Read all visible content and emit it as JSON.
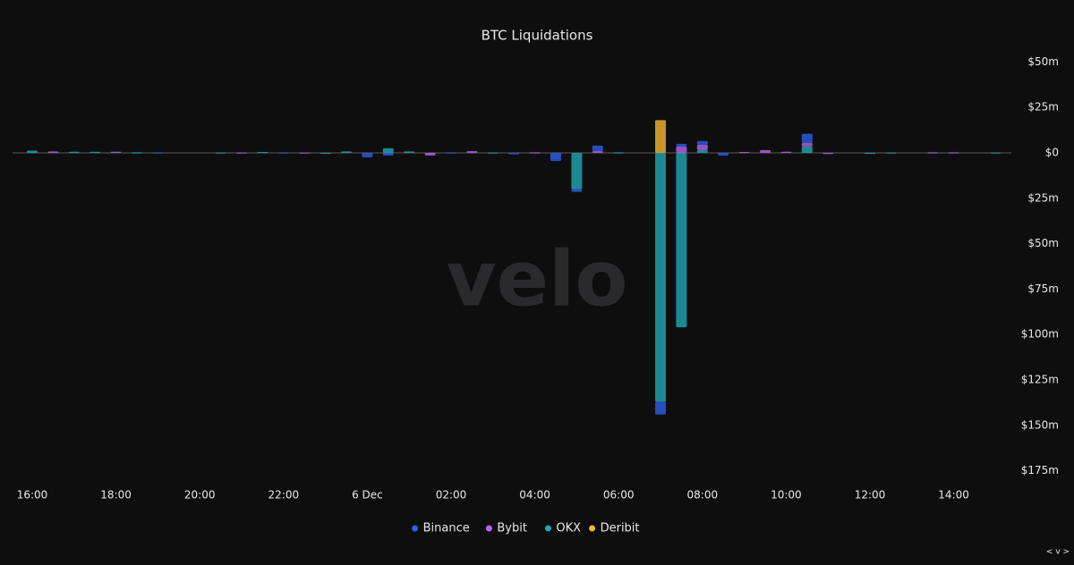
{
  "chart_data": {
    "type": "bar",
    "title": "BTC Liquidations",
    "watermark": "velo",
    "corner_label": "< v >",
    "stacked": true,
    "categories": [
      "16:00",
      null,
      null,
      null,
      "18:00",
      null,
      null,
      null,
      "20:00",
      null,
      null,
      null,
      "22:00",
      null,
      null,
      null,
      "6 Dec",
      null,
      null,
      null,
      "02:00",
      null,
      null,
      null,
      "04:00",
      null,
      null,
      null,
      "06:00",
      null,
      null,
      null,
      "08:00",
      null,
      null,
      null,
      "10:00",
      null,
      null,
      null,
      "12:00",
      null,
      null,
      null,
      "14:00",
      null,
      null
    ],
    "series": [
      {
        "name": "Binance",
        "color": "#2f5ee8",
        "values": [
          null,
          null,
          null,
          null,
          null,
          null,
          0.2,
          null,
          null,
          null,
          null,
          null,
          0.2,
          null,
          null,
          null,
          -2.5,
          -1.5,
          null,
          null,
          0.2,
          null,
          null,
          -0.8,
          null,
          -4.5,
          -1.5,
          3,
          null,
          null,
          -7,
          1.5,
          2,
          -1.5,
          null,
          null,
          null,
          5,
          null,
          null,
          null,
          null,
          null,
          null,
          null,
          null,
          null
        ]
      },
      {
        "name": "Bybit",
        "color": "#b964f0",
        "values": [
          null,
          0.8,
          null,
          null,
          0.6,
          null,
          null,
          null,
          null,
          null,
          0.2,
          null,
          null,
          0.2,
          null,
          null,
          null,
          null,
          null,
          -1.5,
          null,
          1,
          null,
          null,
          0.3,
          null,
          null,
          1,
          null,
          null,
          null,
          3.5,
          3,
          null,
          0.5,
          1.5,
          0.6,
          2,
          -0.6,
          null,
          null,
          null,
          null,
          0.3,
          0.3,
          null,
          null
        ]
      },
      {
        "name": "OKX",
        "color": "#1fa9b4",
        "values": [
          1.2,
          null,
          0.6,
          0.6,
          null,
          0.3,
          null,
          null,
          null,
          0.2,
          null,
          0.5,
          null,
          null,
          -0.5,
          0.8,
          null,
          2.5,
          0.8,
          null,
          null,
          null,
          0.2,
          null,
          null,
          null,
          -20,
          null,
          0.3,
          null,
          -137,
          -96,
          1.5,
          null,
          null,
          null,
          null,
          3.5,
          null,
          null,
          -0.4,
          0.2,
          null,
          null,
          null,
          null,
          0.2
        ]
      },
      {
        "name": "Deribit",
        "color": "#f7b733",
        "values": [
          null,
          null,
          null,
          null,
          null,
          null,
          null,
          null,
          null,
          null,
          null,
          null,
          null,
          null,
          null,
          null,
          null,
          null,
          null,
          null,
          null,
          null,
          null,
          null,
          null,
          null,
          null,
          null,
          null,
          null,
          18,
          null,
          null,
          null,
          null,
          null,
          null,
          null,
          null,
          null,
          null,
          null,
          null,
          null,
          null,
          null,
          null
        ]
      }
    ],
    "ylim": [
      -180,
      55
    ],
    "yticks": [
      {
        "value": 50,
        "label": "$50m"
      },
      {
        "value": 25,
        "label": "$25m"
      },
      {
        "value": 0,
        "label": "$0"
      },
      {
        "value": -25,
        "label": "$25m"
      },
      {
        "value": -50,
        "label": "$50m"
      },
      {
        "value": -75,
        "label": "$75m"
      },
      {
        "value": -100,
        "label": "$100m"
      },
      {
        "value": -125,
        "label": "$125m"
      },
      {
        "value": -150,
        "label": "$150m"
      },
      {
        "value": -175,
        "label": "$175m"
      }
    ],
    "legend": "bottom"
  }
}
